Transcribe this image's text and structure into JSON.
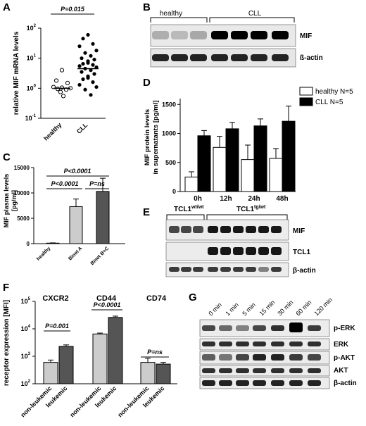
{
  "panels": {
    "A": {
      "letter": "A",
      "ylabel": "relative MIF mRNA levels",
      "yticks": [
        "10",
        "10",
        "10",
        "10"
      ],
      "ytick_exps": [
        "-1",
        "0",
        "1",
        "2"
      ],
      "groups": [
        "healthy",
        "CLL"
      ],
      "pvalue": "P=0.015"
    },
    "B": {
      "letter": "B",
      "groups": [
        "healthy",
        "CLL"
      ],
      "rows": [
        "MIF",
        "ß-actin"
      ]
    },
    "C": {
      "letter": "C",
      "ylabel_line1": "MIF plasma levels",
      "ylabel_line2": "[pg/ml]",
      "yticks": [
        "0",
        "5000",
        "10000",
        "15000"
      ],
      "categories": [
        "healthy",
        "Binet A",
        "Binet B+C"
      ],
      "pvalues": [
        "P<0.0001",
        "P<0.0001",
        "P=ns"
      ]
    },
    "D": {
      "letter": "D",
      "ylabel_line1": "MIF protein levels",
      "ylabel_line2": "in supernatants [pg/ml]",
      "yticks": [
        "0",
        "500",
        "1000",
        "1500"
      ],
      "categories": [
        "0h",
        "12h",
        "24h",
        "48h"
      ],
      "legend": [
        "healthy N=5",
        "CLL N=5"
      ]
    },
    "E": {
      "letter": "E",
      "groups": [
        "TCL1",
        "TCL1"
      ],
      "group_sups": [
        "wt/wt",
        "tg/wt"
      ],
      "rows": [
        "MIF",
        "TCL1",
        "β-actin"
      ]
    },
    "F": {
      "letter": "F",
      "ylabel": "receptor expression [MFI]",
      "yticks": [
        "10",
        "10",
        "10",
        "10"
      ],
      "ytick_exps": [
        "2",
        "3",
        "4",
        "5"
      ],
      "markers": [
        "CXCR2",
        "CD44",
        "CD74"
      ],
      "xlabels": [
        "non-leukemic",
        "leukemic"
      ],
      "pvalues": [
        "P=0.001",
        "P<0.0001",
        "P=ns"
      ]
    },
    "G": {
      "letter": "G",
      "timepoints": [
        "0 min",
        "1 min",
        "5 min",
        "15 min",
        "30 min",
        "60 min",
        "120 min"
      ],
      "rows": [
        "p-ERK",
        "ERK",
        "p-AKT",
        "AKT",
        "β-actin"
      ]
    }
  },
  "colors": {
    "light_bar": "#cccccc",
    "dark_bar": "#555555",
    "black": "#000000"
  },
  "chart_data": [
    {
      "type": "scatter",
      "panel": "A",
      "ylabel": "relative MIF mRNA levels",
      "yscale": "log",
      "ylim": [
        0.1,
        100
      ],
      "categories": [
        "healthy",
        "CLL"
      ],
      "series": [
        {
          "name": "healthy",
          "values": [
            4,
            1.8,
            1.5,
            1.1,
            1.05,
            1.0,
            0.95,
            0.9,
            0.75,
            0.55
          ],
          "median": 1.0
        },
        {
          "name": "CLL",
          "values": [
            60,
            45,
            30,
            25,
            18,
            15,
            12,
            10,
            9,
            8,
            7,
            6.5,
            6,
            5.5,
            5,
            4.5,
            4,
            3.5,
            3,
            2.5,
            2.2,
            2,
            1.6,
            1.3,
            1.1,
            0.9,
            0.6
          ],
          "median": 4.5
        }
      ],
      "annotations": [
        "P=0.015"
      ]
    },
    {
      "type": "bar",
      "panel": "C",
      "ylabel": "MIF plasma levels [pg/ml]",
      "categories": [
        "healthy",
        "Binet A",
        "Binet B+C"
      ],
      "values": [
        100,
        7300,
        10300
      ],
      "errors": [
        50,
        1500,
        2600
      ],
      "ylim": [
        0,
        15000
      ],
      "annotations": [
        "P<0.0001",
        "P<0.0001",
        "P=ns"
      ]
    },
    {
      "type": "bar",
      "panel": "D",
      "ylabel": "MIF protein levels in supernatants [pg/ml]",
      "categories": [
        "0h",
        "12h",
        "24h",
        "48h"
      ],
      "series": [
        {
          "name": "healthy N=5",
          "values": [
            250,
            760,
            550,
            570
          ],
          "errors": [
            90,
            190,
            250,
            170
          ]
        },
        {
          "name": "CLL N=5",
          "values": [
            960,
            1080,
            1130,
            1210
          ],
          "errors": [
            90,
            110,
            120,
            260
          ]
        }
      ],
      "ylim": [
        0,
        1600
      ]
    },
    {
      "type": "bar",
      "panel": "F",
      "ylabel": "receptor expression [MFI]",
      "yscale": "log",
      "ylim": [
        100,
        100000
      ],
      "categories": [
        "CXCR2",
        "CD44",
        "CD74"
      ],
      "series": [
        {
          "name": "non-leukemic",
          "values": [
            600,
            6500,
            600
          ],
          "errors": [
            130,
            500,
            250
          ]
        },
        {
          "name": "leukemic",
          "values": [
            2300,
            26000,
            520
          ],
          "errors": [
            300,
            3000,
            80
          ]
        }
      ],
      "annotations": [
        "P=0.001",
        "P<0.0001",
        "P=ns"
      ]
    }
  ]
}
